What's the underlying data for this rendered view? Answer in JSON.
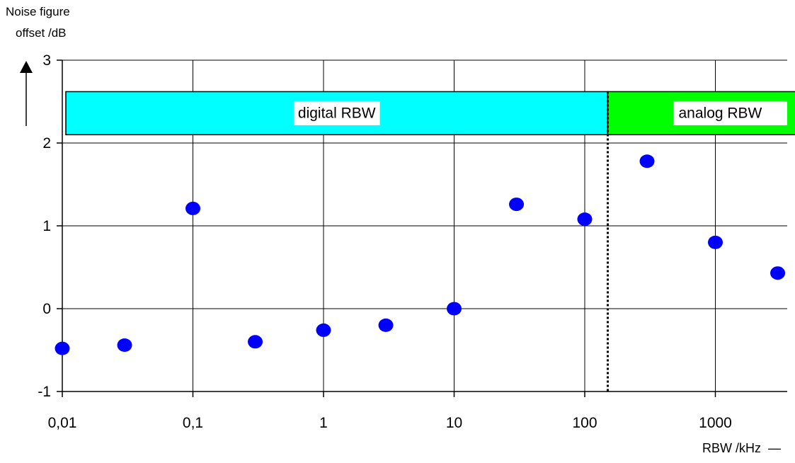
{
  "chart_data": {
    "type": "scatter",
    "title": "",
    "ylabel_line1": "Noise figure",
    "ylabel_line2": "offset /dB",
    "xlabel": "RBW /kHz",
    "x_scale": "log",
    "x_ticks": [
      {
        "value": 0.01,
        "label": "0,01"
      },
      {
        "value": 0.1,
        "label": "0,1"
      },
      {
        "value": 1,
        "label": "1"
      },
      {
        "value": 10,
        "label": "10"
      },
      {
        "value": 100,
        "label": "100"
      },
      {
        "value": 1000,
        "label": "1000"
      }
    ],
    "y_ticks": [
      {
        "value": -1,
        "label": "-1"
      },
      {
        "value": 0,
        "label": "0"
      },
      {
        "value": 1,
        "label": "1"
      },
      {
        "value": 2,
        "label": "2"
      },
      {
        "value": 3,
        "label": "3"
      }
    ],
    "ylim": [
      -1,
      3
    ],
    "grid": true,
    "marker_color": "#0000ff",
    "points": [
      {
        "x": 0.01,
        "y": -0.48
      },
      {
        "x": 0.03,
        "y": -0.44
      },
      {
        "x": 0.1,
        "y": 1.21
      },
      {
        "x": 0.3,
        "y": -0.4
      },
      {
        "x": 1,
        "y": -0.26
      },
      {
        "x": 3,
        "y": -0.2
      },
      {
        "x": 10,
        "y": 0.0
      },
      {
        "x": 30,
        "y": 1.26
      },
      {
        "x": 100,
        "y": 1.08
      },
      {
        "x": 300,
        "y": 1.78
      },
      {
        "x": 1000,
        "y": 0.8
      },
      {
        "x": 3000,
        "y": 0.43
      }
    ],
    "boundary_x": 150,
    "bands": [
      {
        "label": "digital RBW",
        "color": "#00ffff"
      },
      {
        "label": "analog RBW",
        "color": "#00ff00"
      }
    ]
  }
}
